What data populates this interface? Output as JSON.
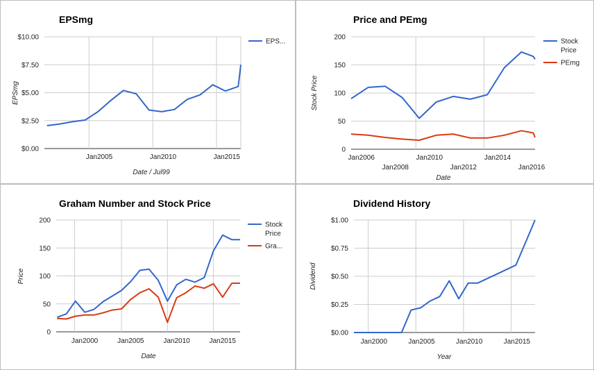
{
  "colors": {
    "series_blue": "#3366cc",
    "series_red": "#dc3912"
  },
  "chart_data": [
    {
      "type": "line",
      "title": "EPSmg",
      "xlabel": "Date / Jul99",
      "ylabel": "EPSmg",
      "x_ticks": [
        "Jan2005",
        "Jan2010",
        "Jan2015"
      ],
      "y_ticks": [
        "$0.00",
        "$2.50",
        "$5.00",
        "$7.50",
        "$10.00"
      ],
      "xlim": [
        2001.1,
        2016.5
      ],
      "ylim": [
        0,
        10
      ],
      "legend": "right",
      "grid": true,
      "series": [
        {
          "name": "EPS...",
          "color": "#3366cc",
          "x": [
            2001.3,
            2002.3,
            2003.3,
            2004.3,
            2005.3,
            2006.3,
            2007.3,
            2008.3,
            2009.3,
            2010.3,
            2011.3,
            2012.3,
            2013.3,
            2014.3,
            2015.3,
            2016.3,
            2016.5
          ],
          "values": [
            2.05,
            2.2,
            2.4,
            2.55,
            3.3,
            4.3,
            5.2,
            4.9,
            3.45,
            3.3,
            3.5,
            4.4,
            4.8,
            5.7,
            5.15,
            5.55,
            7.5
          ]
        }
      ]
    },
    {
      "type": "line",
      "title": "Price and PEmg",
      "xlabel": "Date",
      "ylabel": "Stock Price",
      "x_ticks": [
        "Jan2006",
        "Jan2008",
        "Jan2010",
        "Jan2012",
        "Jan2014",
        "Jan2016"
      ],
      "y_ticks": [
        "0",
        "50",
        "100",
        "150",
        "200"
      ],
      "xlim": [
        2005.8,
        2016.6
      ],
      "ylim": [
        0,
        200
      ],
      "legend": "right",
      "grid": true,
      "series": [
        {
          "name": "Stock Price",
          "color": "#3366cc",
          "x": [
            2005.8,
            2006.8,
            2007.8,
            2008.8,
            2009.8,
            2010.8,
            2011.8,
            2012.8,
            2013.8,
            2014.8,
            2015.8,
            2016.5,
            2016.6
          ],
          "values": [
            90,
            110,
            112,
            92,
            55,
            84,
            94,
            89,
            97,
            145,
            173,
            165,
            160
          ]
        },
        {
          "name": "PEmg",
          "color": "#dc3912",
          "x": [
            2005.8,
            2006.8,
            2007.8,
            2008.8,
            2009.8,
            2010.8,
            2011.8,
            2012.8,
            2013.8,
            2014.8,
            2015.8,
            2016.5,
            2016.6
          ],
          "values": [
            27,
            25,
            21,
            18,
            16,
            25,
            27,
            20,
            20,
            25,
            33,
            29,
            21
          ]
        }
      ]
    },
    {
      "type": "line",
      "title": "Graham Number and Stock Price",
      "xlabel": "Date",
      "ylabel": "Price",
      "x_ticks": [
        "Jan2000",
        "Jan2005",
        "Jan2010",
        "Jan2015"
      ],
      "y_ticks": [
        "0",
        "50",
        "100",
        "150",
        "200"
      ],
      "xlim": [
        1996.5,
        2016.5
      ],
      "ylim": [
        0,
        200
      ],
      "legend": "right",
      "grid": true,
      "series": [
        {
          "name": "Stock Price",
          "color": "#3366cc",
          "x": [
            1996.6,
            1997.6,
            1998.6,
            1999.6,
            2000.6,
            2001.6,
            2002.6,
            2003.6,
            2004.6,
            2005.6,
            2006.6,
            2007.6,
            2008.6,
            2009.6,
            2010.6,
            2011.6,
            2012.6,
            2013.6,
            2014.6,
            2015.6,
            2016.5
          ],
          "values": [
            26,
            32,
            55,
            35,
            40,
            54,
            64,
            74,
            90,
            110,
            112,
            92,
            55,
            84,
            94,
            89,
            97,
            145,
            173,
            165,
            165
          ]
        },
        {
          "name": "Gra...",
          "color": "#dc3912",
          "x": [
            1996.6,
            1997.6,
            1998.6,
            1999.6,
            2000.6,
            2001.6,
            2002.6,
            2003.6,
            2004.6,
            2005.6,
            2006.6,
            2007.6,
            2008.6,
            2009.6,
            2010.6,
            2011.6,
            2012.6,
            2013.6,
            2014.6,
            2015.6,
            2016.5
          ],
          "values": [
            24,
            23,
            28,
            30,
            30,
            34,
            39,
            41,
            58,
            70,
            77,
            62,
            17,
            61,
            70,
            82,
            78,
            86,
            62,
            87,
            87
          ]
        }
      ]
    },
    {
      "type": "line",
      "title": "Dividend History",
      "xlabel": "Year",
      "ylabel": "Dividend",
      "x_ticks": [
        "Jan2000",
        "Jan2005",
        "Jan2010",
        "Jan2015"
      ],
      "y_ticks": [
        "$0.00",
        "$0.25",
        "$0.50",
        "$0.75",
        "$1.00"
      ],
      "xlim": [
        1997.5,
        2016.5
      ],
      "ylim": [
        0,
        1
      ],
      "legend": "none",
      "grid": true,
      "series": [
        {
          "name": "",
          "color": "#3366cc",
          "x": [
            1997.5,
            1998.5,
            1999.5,
            2000.5,
            2001.5,
            2002.5,
            2003.5,
            2004.5,
            2005.5,
            2006.5,
            2007.5,
            2008.5,
            2009.5,
            2010.5,
            2011.5,
            2012.5,
            2013.5,
            2014.5,
            2015.5,
            2016.5
          ],
          "values": [
            0,
            0,
            0,
            0,
            0,
            0,
            0.2,
            0.22,
            0.28,
            0.32,
            0.46,
            0.3,
            0.44,
            0.44,
            0.48,
            0.52,
            0.56,
            0.6,
            0.8,
            1.0
          ]
        }
      ]
    }
  ]
}
